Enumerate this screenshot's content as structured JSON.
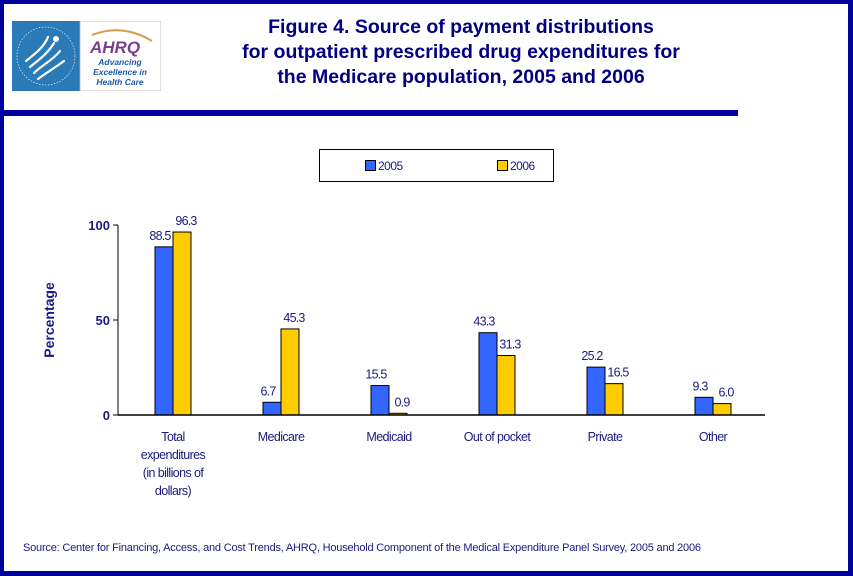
{
  "header": {
    "logo": {
      "hhs_seal_label": "Department of Health & Human Services USA",
      "ahrq_wordmark": "AHRQ",
      "tagline_lines": [
        "Advancing",
        "Excellence in",
        "Health Care"
      ]
    },
    "title_lines": [
      "Figure 4. Source of payment distributions",
      "for outpatient prescribed drug expenditures for",
      "the Medicare population, 2005 and 2006"
    ]
  },
  "colors": {
    "frame": "#00009c",
    "title": "#000080",
    "text": "#1a1a80",
    "series_2005": "#3366ff",
    "series_2006": "#ffcc00"
  },
  "chart_data": {
    "type": "bar",
    "title": "Figure 4. Source of payment distributions for outpatient prescribed drug expenditures for the Medicare population, 2005 and 2006",
    "xlabel": "",
    "ylabel": "Percentage",
    "ylim": [
      0,
      100
    ],
    "yticks": [
      0,
      50,
      100
    ],
    "grid": false,
    "legend": {
      "placement": "top-center",
      "entries": [
        "2005",
        "2006"
      ]
    },
    "categories": [
      "Total expenditures (in billions of dollars)",
      "Medicare",
      "Medicaid",
      "Out of pocket",
      "Private",
      "Other"
    ],
    "category_label_lines": [
      [
        "Total",
        "expenditures",
        "(in billions of",
        "dollars)"
      ],
      [
        "Medicare"
      ],
      [
        "Medicaid"
      ],
      [
        "Out of pocket"
      ],
      [
        "Private"
      ],
      [
        "Other"
      ]
    ],
    "series": [
      {
        "name": "2005",
        "color": "#3366ff",
        "values": [
          88.5,
          6.7,
          15.5,
          43.3,
          25.2,
          9.3
        ],
        "labels": [
          "88.5",
          "6.7",
          "15.5",
          "43.3",
          "25.2",
          "9.3"
        ]
      },
      {
        "name": "2006",
        "color": "#ffcc00",
        "values": [
          96.3,
          45.3,
          0.9,
          31.3,
          16.5,
          6.0
        ],
        "labels": [
          "96.3",
          "45.3",
          "0.9",
          "31.3",
          "16.5",
          "6.0"
        ]
      }
    ]
  },
  "footer": {
    "source": "Source: Center for Financing, Access, and Cost Trends, AHRQ, Household Component of the Medical Expenditure Panel Survey, 2005 and 2006"
  }
}
